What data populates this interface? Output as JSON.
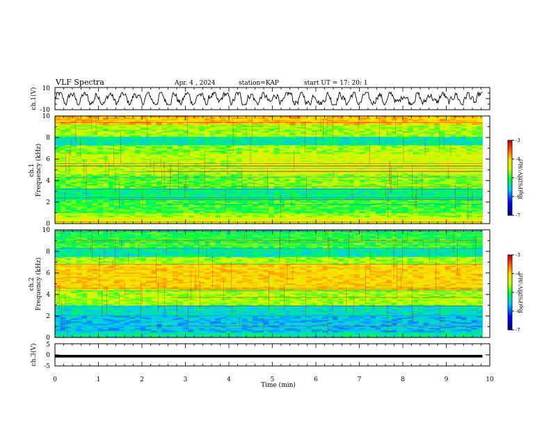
{
  "header": {
    "title": "VLF Spectra",
    "date": "Apr. 4 , 2024",
    "station": "station=KAP",
    "start": "start UT =  17: 20: 1"
  },
  "chart_data": [
    {
      "type": "line",
      "panel": "ch1-waveform",
      "ylabel": "ch.1(V)",
      "ylim": [
        -10,
        10
      ],
      "ytick_labels": [
        "10",
        "-10"
      ],
      "x_range_min": [
        0,
        9.83
      ],
      "series": [
        {
          "color": "#000000",
          "note_values": "noisy waveform oscillating roughly between -5 and 5 V"
        }
      ]
    },
    {
      "type": "heatmap",
      "panel": "ch1-spectrogram",
      "ylabel": "ch.1\nFrequency (kHz)",
      "ylabel_lines": [
        "ch.1",
        "Frequency (kHz)"
      ],
      "ylim": [
        0,
        10
      ],
      "yticks": [
        "0",
        "2",
        "4",
        "6",
        "8",
        "10"
      ],
      "x_range_min": [
        0,
        9.83
      ],
      "colorbar": {
        "label": "log(PSD)(V²/Hz)",
        "range": [
          -7,
          -3
        ],
        "ticks": [
          "-3",
          "-4",
          "-5",
          "-6",
          "-7"
        ]
      },
      "bands": [
        {
          "f": [
            0,
            0.6
          ],
          "level": -4.3
        },
        {
          "f": [
            0.6,
            1.0
          ],
          "level": -4.6
        },
        {
          "f": [
            1.0,
            2.2
          ],
          "level": -4.9
        },
        {
          "f": [
            2.2,
            3.3
          ],
          "level": -5.2
        },
        {
          "f": [
            3.3,
            4.6
          ],
          "level": -4.8
        },
        {
          "f": [
            4.6,
            6.5
          ],
          "level": -4.5
        },
        {
          "f": [
            6.5,
            7.3
          ],
          "level": -4.7
        },
        {
          "f": [
            7.3,
            8.1
          ],
          "level": -5.3
        },
        {
          "f": [
            8.1,
            9.2
          ],
          "level": -4.6
        },
        {
          "f": [
            9.2,
            10
          ],
          "level": -3.9
        }
      ]
    },
    {
      "type": "heatmap",
      "panel": "ch2-spectrogram",
      "ylabel_lines": [
        "ch.2",
        "Frequency (kHz)"
      ],
      "ylim": [
        0,
        10
      ],
      "yticks": [
        "0",
        "2",
        "4",
        "6",
        "8",
        "10"
      ],
      "x_range_min": [
        0,
        9.83
      ],
      "colorbar": {
        "label": "log(PSD)(V²/Hz)",
        "range": [
          -7,
          -3
        ],
        "ticks": [
          "-3",
          "-4",
          "-5",
          "-6",
          "-7"
        ]
      },
      "bands": [
        {
          "f": [
            0,
            0.5
          ],
          "level": -5.3
        },
        {
          "f": [
            0.5,
            2.0
          ],
          "level": -5.6
        },
        {
          "f": [
            2.0,
            3.0
          ],
          "level": -5.4
        },
        {
          "f": [
            3.0,
            4.5
          ],
          "level": -4.6
        },
        {
          "f": [
            4.5,
            6.8
          ],
          "level": -4.0
        },
        {
          "f": [
            6.8,
            7.5
          ],
          "level": -4.6
        },
        {
          "f": [
            7.5,
            8.3
          ],
          "level": -5.3
        },
        {
          "f": [
            8.3,
            9.2
          ],
          "level": -4.9
        },
        {
          "f": [
            9.2,
            10
          ],
          "level": -5.0
        }
      ]
    },
    {
      "type": "line",
      "panel": "ch3-waveform",
      "ylabel": "ch.3(V)",
      "ylim": [
        -5,
        5
      ],
      "ytick_labels": [
        "5",
        "0",
        "-5"
      ],
      "x_range_min": [
        0,
        9.83
      ],
      "series": [
        {
          "color": "#000000",
          "values_range": [
            -1.2,
            0.0
          ]
        }
      ]
    }
  ],
  "xaxis": {
    "label": "Time (min)",
    "ticks": [
      "0",
      "1",
      "2",
      "3",
      "4",
      "5",
      "6",
      "7",
      "8",
      "9",
      "10"
    ],
    "range": [
      0,
      10
    ]
  }
}
